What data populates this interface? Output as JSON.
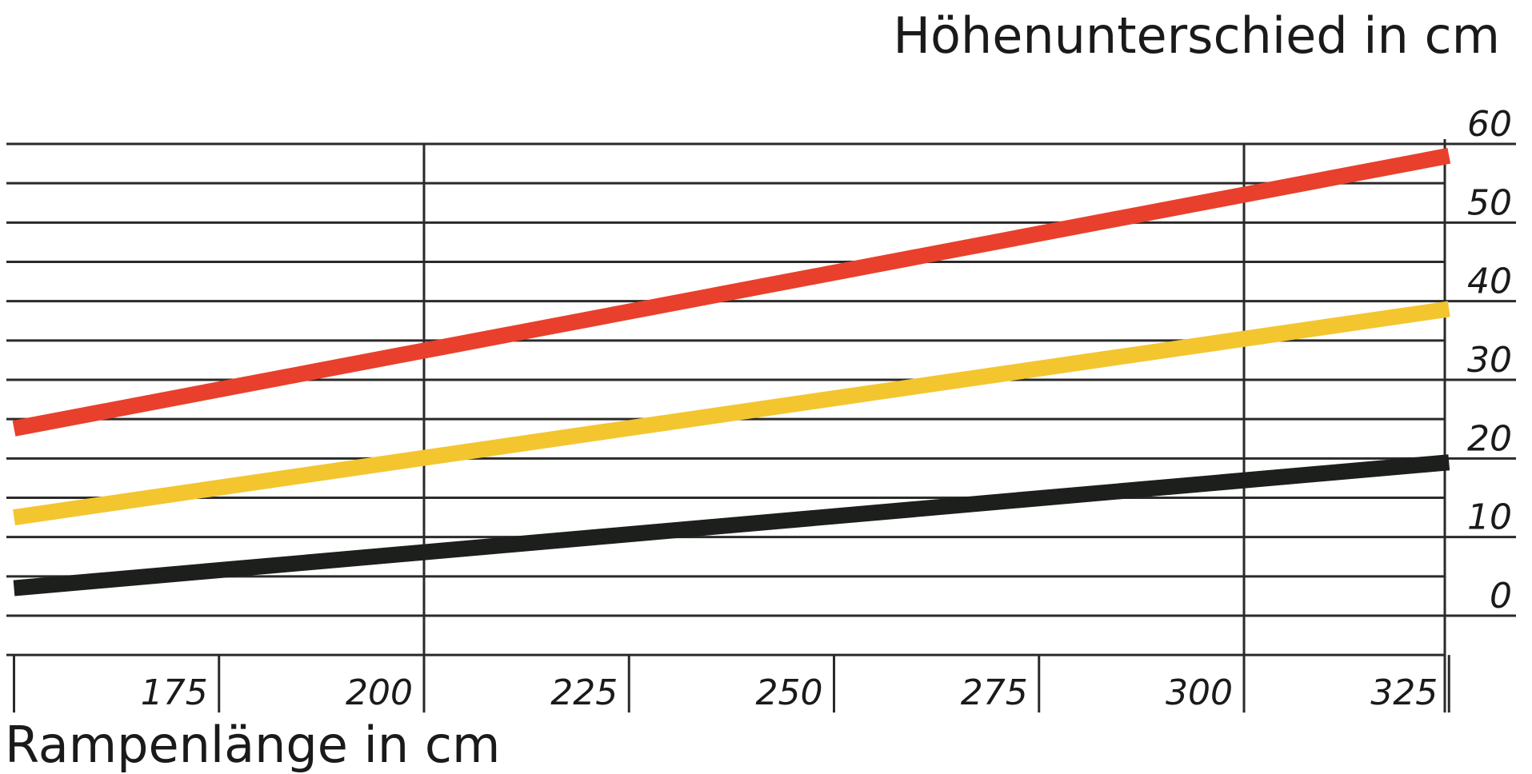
{
  "chart_data": {
    "type": "line",
    "xlabel": "Rampenlänge in cm",
    "ylabel": "Höhenunterschied in cm",
    "x_ticks": [
      175,
      200,
      225,
      250,
      275,
      300,
      325
    ],
    "y_ticks": [
      0,
      10,
      20,
      30,
      40,
      50,
      60
    ],
    "xlim": [
      150,
      325
    ],
    "ylim": [
      -5,
      60
    ],
    "grid": true,
    "series": [
      {
        "x": [
          150,
          325
        ],
        "y": [
          23.8,
          58.5
        ],
        "color": "#e8402c"
      },
      {
        "x": [
          150,
          325
        ],
        "y": [
          12.5,
          39.0
        ],
        "color": "#f3c630"
      },
      {
        "x": [
          150,
          325
        ],
        "y": [
          3.5,
          19.5
        ],
        "color": "#1c1f1c"
      }
    ]
  }
}
